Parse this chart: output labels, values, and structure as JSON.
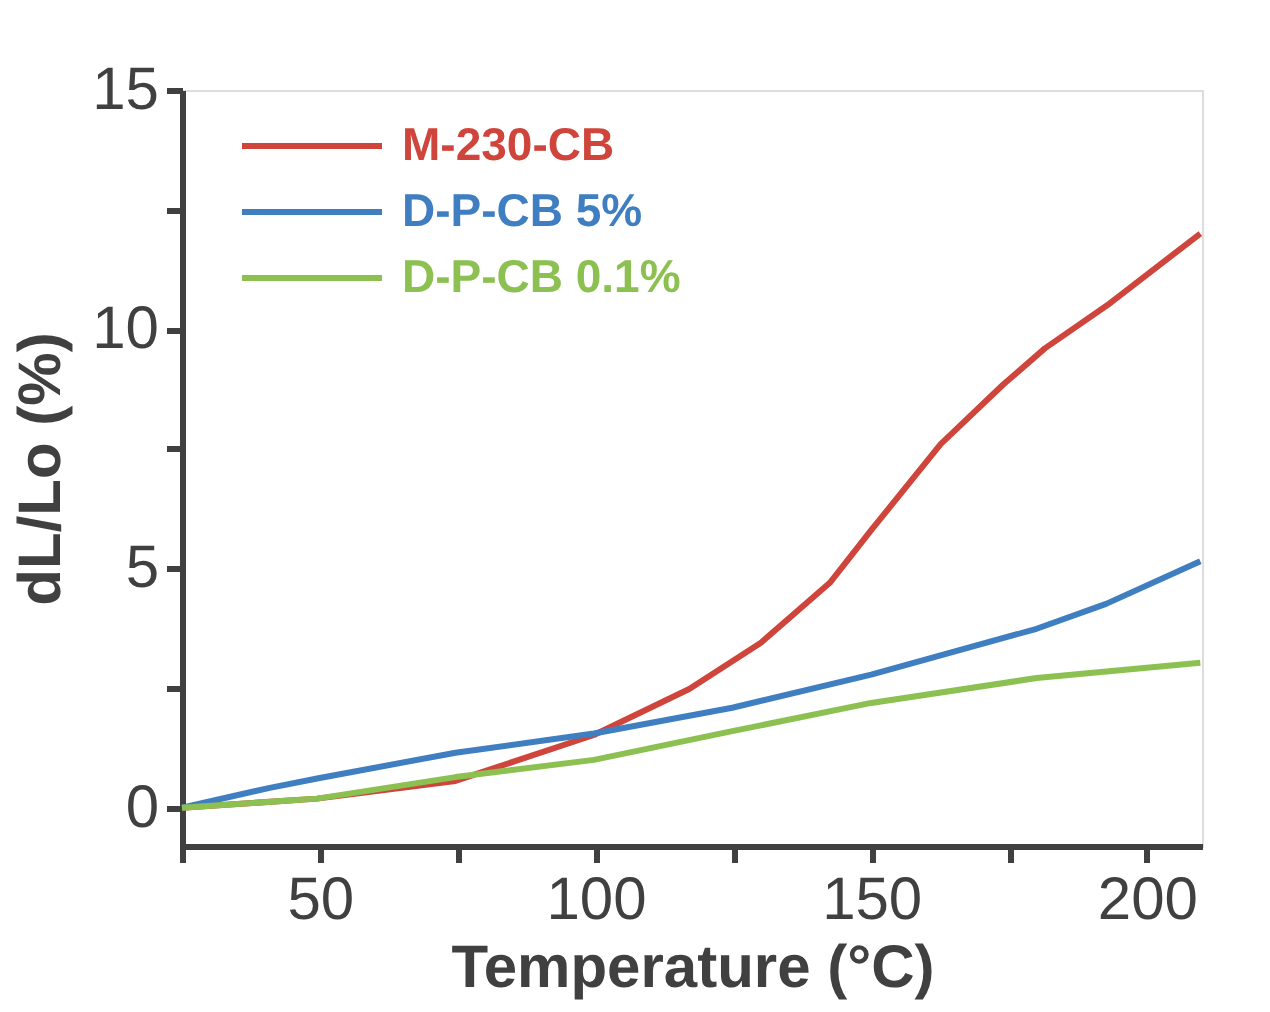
{
  "chart_data": {
    "type": "line",
    "xlabel": "Temperature (°C)",
    "ylabel": "dL/Lo (%)",
    "xlim": [
      25,
      210
    ],
    "xticks": [
      {
        "value": 25,
        "label": null
      },
      50,
      {
        "value": 75,
        "label": null
      },
      100,
      {
        "value": 125,
        "label": null
      },
      150,
      {
        "value": 175,
        "label": null
      },
      200
    ],
    "ylim": [
      -0.8,
      15
    ],
    "yticks": [
      0,
      {
        "value": 2.5,
        "label": null
      },
      5,
      {
        "value": 7.5,
        "label": null
      },
      10,
      {
        "value": 12.5,
        "label": null
      },
      15
    ],
    "grid": false,
    "legend": "top left",
    "marker": "none",
    "line_style": "solid",
    "series": [
      {
        "name": "M-230-CB",
        "color": "#d0453b",
        "x": [
          25,
          49.5,
          74.6,
          99.7,
          117,
          130,
          142.5,
          150,
          162.6,
          174,
          181.5,
          192.8,
          209.7
        ],
        "values": [
          0,
          0.19,
          0.56,
          1.52,
          2.48,
          3.45,
          4.7,
          5.8,
          7.6,
          8.85,
          9.6,
          10.5,
          12.0
        ]
      },
      {
        "name": "D-P-CB 5%",
        "color": "#3f7fc1",
        "x": [
          25,
          40.7,
          49.5,
          74.6,
          99.7,
          124.8,
          150,
          180,
          192.6,
          209.7
        ],
        "values": [
          0,
          0.41,
          0.61,
          1.15,
          1.55,
          2.09,
          2.78,
          3.74,
          4.26,
          5.15
        ]
      },
      {
        "name": "D-P-CB 0.1%",
        "color": "#8cc051",
        "x": [
          25,
          49.5,
          74.6,
          99.7,
          124.8,
          150,
          180,
          209.7
        ],
        "values": [
          0,
          0.19,
          0.64,
          1.0,
          1.6,
          2.19,
          2.71,
          3.03
        ]
      }
    ]
  }
}
